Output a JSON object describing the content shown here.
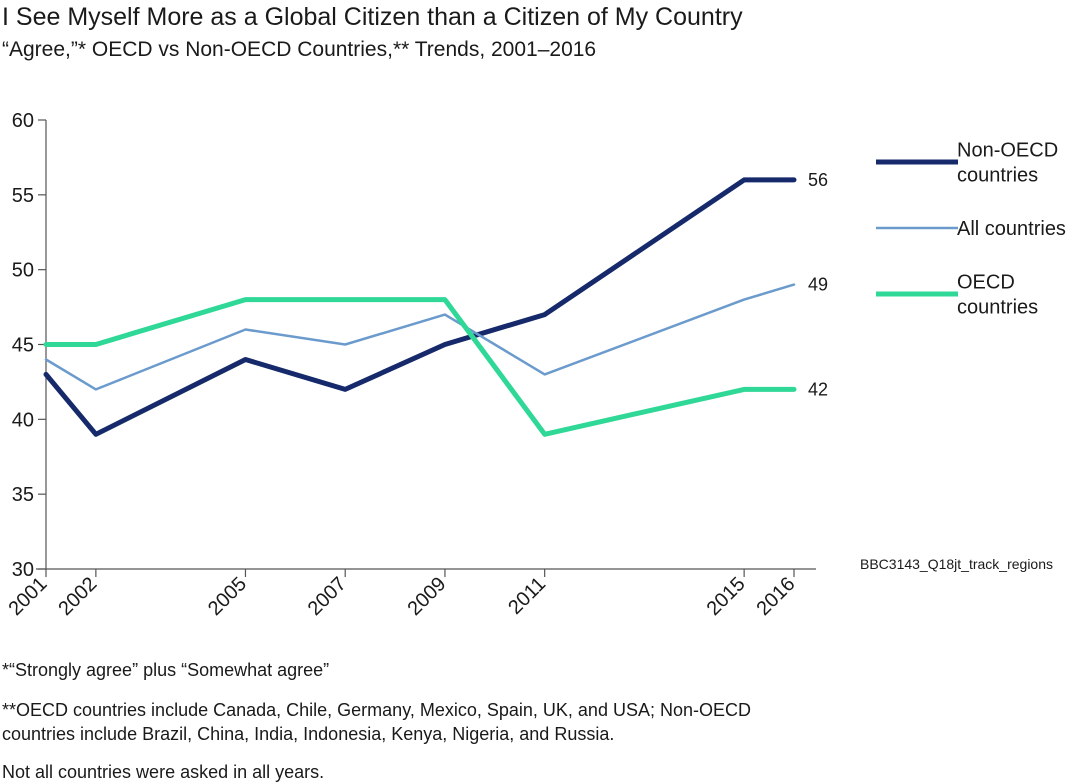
{
  "header": {
    "title": "I See Myself More as a Global Citizen than a Citizen of My Country",
    "subtitle": "“Agree,”* OECD vs Non-OECD Countries,** Trends, 2001–2016"
  },
  "footnotes": {
    "agree_def": "*“Strongly agree” plus “Somewhat agree”",
    "oecd_def": "**OECD countries include Canada, Chile, Germany, Mexico, Spain, UK, and USA; Non-OECD countries include Brazil, China, India, Indonesia, Kenya, Nigeria, and Russia.",
    "note": "Not all countries were asked in all years."
  },
  "source_code": "BBC3143_Q18jt_track_regions",
  "chart_data": {
    "type": "line",
    "title": "I See Myself More as a Global Citizen than a Citizen of My Country",
    "xlabel": "",
    "ylabel": "",
    "x": [
      2001,
      2002,
      2005,
      2007,
      2009,
      2011,
      2015,
      2016
    ],
    "x_tick_labels": [
      "2001",
      "2002",
      "2005",
      "2007",
      "2009",
      "2011",
      "2015",
      "2016"
    ],
    "xlim": [
      2001,
      2016
    ],
    "ylim": [
      30,
      60
    ],
    "y_ticks": [
      30,
      35,
      40,
      45,
      50,
      55,
      60
    ],
    "grid": false,
    "legend_position": "right",
    "series": [
      {
        "key": "non_oecd",
        "name": "Non-OECD countries",
        "legend_lines": [
          "Non-OECD",
          "countries"
        ],
        "color": "#15296b",
        "width": 5,
        "values": [
          43,
          39,
          44,
          42,
          45,
          47,
          56,
          56
        ],
        "end_label": "56"
      },
      {
        "key": "all",
        "name": "All countries",
        "legend_lines": [
          "All countries"
        ],
        "color": "#6b9bcd",
        "width": 2.5,
        "values": [
          44,
          42,
          46,
          45,
          47,
          43,
          48,
          49
        ],
        "end_label": "49"
      },
      {
        "key": "oecd",
        "name": "OECD countries",
        "legend_lines": [
          "OECD",
          "countries"
        ],
        "color": "#2fd897",
        "width": 5,
        "values": [
          45,
          45,
          48,
          48,
          48,
          39,
          42,
          42
        ],
        "end_label": "42"
      }
    ]
  }
}
